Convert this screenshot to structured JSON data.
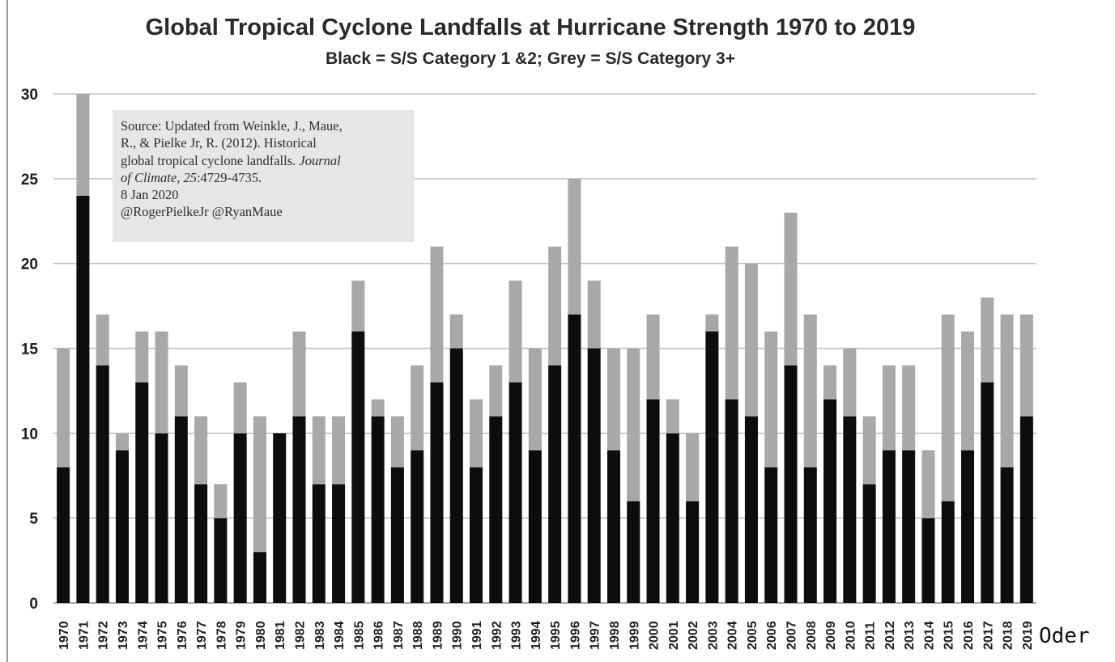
{
  "chart_data": {
    "type": "bar",
    "stacked": true,
    "title": "Global Tropical Cyclone Landfalls at Hurricane Strength 1970 to 2019",
    "subtitle": "Black = S/S Category 1 &2; Grey = S/S Category 3+",
    "xlabel": "",
    "ylabel": "",
    "ylim": [
      0,
      30
    ],
    "yticks": [
      "0",
      "5",
      "10",
      "15",
      "20",
      "25",
      "30"
    ],
    "grid": true,
    "categories": [
      "1970",
      "1971",
      "1972",
      "1973",
      "1974",
      "1975",
      "1976",
      "1977",
      "1978",
      "1979",
      "1980",
      "1981",
      "1982",
      "1983",
      "1984",
      "1985",
      "1986",
      "1987",
      "1988",
      "1989",
      "1990",
      "1991",
      "1992",
      "1993",
      "1994",
      "1995",
      "1996",
      "1997",
      "1998",
      "1999",
      "2000",
      "2001",
      "2002",
      "2003",
      "2004",
      "2005",
      "2006",
      "2007",
      "2008",
      "2009",
      "2010",
      "2011",
      "2012",
      "2013",
      "2014",
      "2015",
      "2016",
      "2017",
      "2018",
      "2019"
    ],
    "series": [
      {
        "color": "#0d0d0d",
        "values": [
          8,
          24,
          14,
          9,
          13,
          10,
          11,
          7,
          5,
          10,
          3,
          10,
          11,
          7,
          7,
          16,
          11,
          8,
          9,
          13,
          15,
          8,
          11,
          13,
          9,
          14,
          17,
          15,
          9,
          6,
          12,
          10,
          6,
          16,
          12,
          11,
          8,
          14,
          8,
          12,
          11,
          7,
          9,
          9,
          5,
          6,
          9,
          13,
          8,
          11
        ]
      },
      {
        "color": "#a8a8a8",
        "values": [
          7,
          6,
          3,
          1,
          3,
          6,
          3,
          4,
          2,
          3,
          8,
          0,
          5,
          4,
          4,
          3,
          1,
          3,
          5,
          8,
          2,
          4,
          3,
          6,
          6,
          7,
          8,
          4,
          6,
          9,
          5,
          2,
          4,
          1,
          9,
          9,
          8,
          9,
          9,
          2,
          4,
          4,
          5,
          5,
          4,
          11,
          7,
          5,
          9,
          6
        ]
      }
    ],
    "totals": [
      15,
      30,
      17,
      10,
      16,
      16,
      14,
      11,
      7,
      13,
      11,
      10,
      16,
      11,
      11,
      19,
      12,
      11,
      14,
      21,
      17,
      12,
      14,
      19,
      15,
      21,
      25,
      19,
      15,
      15,
      17,
      12,
      10,
      17,
      21,
      20,
      16,
      23,
      17,
      14,
      15,
      11,
      14,
      14,
      9,
      17,
      16,
      18,
      17,
      17
    ]
  },
  "source_box": {
    "line1": "Source: Updated from Weinkle, J., Maue,",
    "line2": "R., & Pielke Jr, R. (2012). Historical",
    "line3": "global tropical cyclone landfalls.",
    "line3_italic": "Journal",
    "line4_italic_a": "of Climate",
    "line4_sep": ",",
    "line4_italic_b": "25",
    "line4_rest": ":4729-4735.",
    "line5": "8 Jan 2020",
    "line6": "@RogerPielkeJr @RyanMaue"
  },
  "trailing_text": "Oder",
  "colors": {
    "cat12": "#0d0d0d",
    "cat3plus": "#a8a8a8",
    "grid": "#c4c4c4"
  }
}
